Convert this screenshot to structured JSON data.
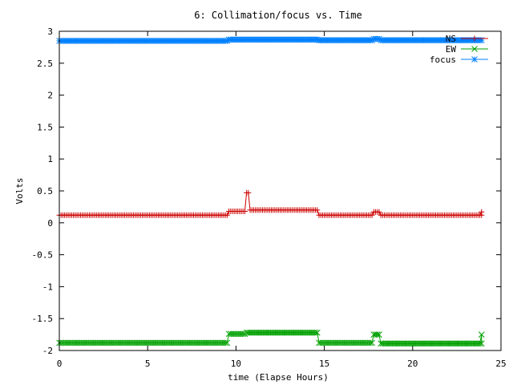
{
  "chart_data": {
    "type": "line",
    "title": "6: Collimation/focus vs. Time",
    "xlabel": "time (Elapse Hours)",
    "ylabel": "Volts",
    "xlim": [
      0,
      25
    ],
    "ylim": [
      -2,
      3
    ],
    "xticks": [
      0,
      5,
      10,
      15,
      20,
      25
    ],
    "xtick_labels": [
      "0",
      "5",
      "10",
      "15",
      "20",
      "25"
    ],
    "yticks": [
      -2,
      -1.5,
      -1,
      -0.5,
      0,
      0.5,
      1,
      1.5,
      2,
      2.5,
      3
    ],
    "ytick_labels": [
      "-2",
      "-1.5",
      "-1",
      "-0.5",
      "0",
      "0.5",
      "1",
      "1.5",
      "2",
      "2.5",
      "3"
    ],
    "legend_position": "top-right",
    "sample_interval_hours": 0.1,
    "series": [
      {
        "name": "NS",
        "marker": "+",
        "color": "#cc0000",
        "x_start": 0,
        "x_end": 23.9,
        "segments": [
          {
            "from": 0,
            "to": 9.6,
            "value": 0.12
          },
          {
            "from": 9.6,
            "to": 10.6,
            "value": 0.18
          },
          {
            "from": 10.6,
            "to": 10.8,
            "value": 0.47
          },
          {
            "from": 10.8,
            "to": 14.7,
            "value": 0.2
          },
          {
            "from": 14.7,
            "to": 17.8,
            "value": 0.12
          },
          {
            "from": 17.8,
            "to": 18.2,
            "value": 0.17
          },
          {
            "from": 18.2,
            "to": 23.9,
            "value": 0.12
          }
        ],
        "points": [
          [
            23.9,
            0.17
          ]
        ]
      },
      {
        "name": "EW",
        "marker": "x",
        "color": "#00a000",
        "x_start": 0,
        "x_end": 23.9,
        "segments": [
          {
            "from": 0,
            "to": 9.6,
            "value": -1.88
          },
          {
            "from": 9.6,
            "to": 10.6,
            "value": -1.74
          },
          {
            "from": 10.6,
            "to": 14.7,
            "value": -1.72
          },
          {
            "from": 14.7,
            "to": 17.8,
            "value": -1.88
          },
          {
            "from": 17.8,
            "to": 18.2,
            "value": -1.75
          },
          {
            "from": 18.2,
            "to": 23.9,
            "value": -1.89
          }
        ],
        "points": [
          [
            23.9,
            -1.75
          ]
        ]
      },
      {
        "name": "focus",
        "marker": "*",
        "color": "#0080ff",
        "x_start": 0,
        "x_end": 23.9,
        "segments": [
          {
            "from": 0,
            "to": 9.6,
            "value": 2.85
          },
          {
            "from": 9.6,
            "to": 14.7,
            "value": 2.87
          },
          {
            "from": 14.7,
            "to": 17.8,
            "value": 2.86
          },
          {
            "from": 17.8,
            "to": 18.2,
            "value": 2.88
          },
          {
            "from": 18.2,
            "to": 23.9,
            "value": 2.86
          }
        ],
        "points": []
      }
    ]
  }
}
